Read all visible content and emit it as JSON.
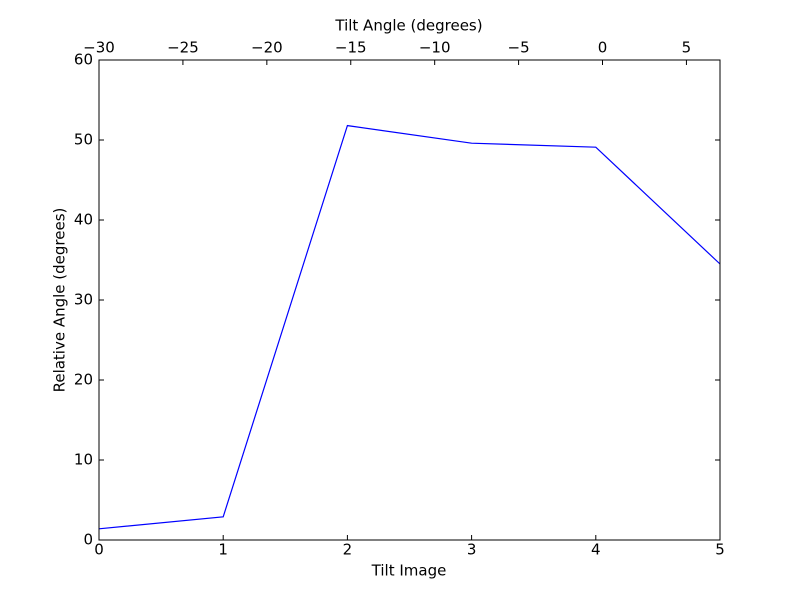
{
  "chart_data": {
    "type": "line",
    "xlabel": "Tilt Image",
    "ylabel": "Relative Angle (degrees)",
    "x2label": "Tilt Angle (degrees)",
    "x": [
      0,
      1,
      2,
      3,
      4,
      5
    ],
    "values": [
      1.4,
      2.9,
      51.8,
      49.6,
      49.1,
      34.5
    ],
    "color": "#0000ff",
    "xlim": [
      0,
      5
    ],
    "xticks": [
      0,
      1,
      2,
      3,
      4,
      5
    ],
    "ylim": [
      0,
      60
    ],
    "yticks": [
      0,
      10,
      20,
      30,
      40,
      50,
      60
    ],
    "x2lim": [
      -30,
      7
    ],
    "x2ticks": [
      {
        "value": -30,
        "label": "−30"
      },
      {
        "value": -25,
        "label": "−25"
      },
      {
        "value": -20,
        "label": "−20"
      },
      {
        "value": -15,
        "label": "−15"
      },
      {
        "value": -10,
        "label": "−10"
      },
      {
        "value": -5,
        "label": "−5"
      },
      0,
      5
    ],
    "grid": false
  }
}
